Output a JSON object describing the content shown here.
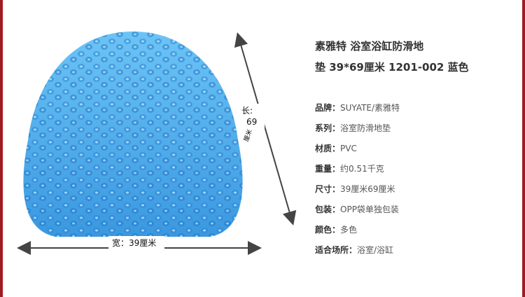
{
  "product": {
    "title_lines": [
      "素雅特 浴室浴缸防滑地",
      "垫 39*69厘米 1201-002 蓝色"
    ],
    "dimensions": {
      "length_label": "长:",
      "length_value": "69",
      "length_unit": "厘米",
      "width_label": "宽：39厘米"
    },
    "specs": [
      {
        "label": "品牌：",
        "value": "SUYATE/素雅特"
      },
      {
        "label": "系列：",
        "value": "浴室防滑地垫"
      },
      {
        "label": "材质：",
        "value": "PVC"
      },
      {
        "label": "重量：",
        "value": "约0.51千克"
      },
      {
        "label": "尺寸：",
        "value": "39厘米69厘米"
      },
      {
        "label": "包装：",
        "value": "OPP袋单独包装"
      },
      {
        "label": "颜色：",
        "value": "多色"
      },
      {
        "label": "适合场所：",
        "value": "浴室/浴缸"
      }
    ]
  }
}
